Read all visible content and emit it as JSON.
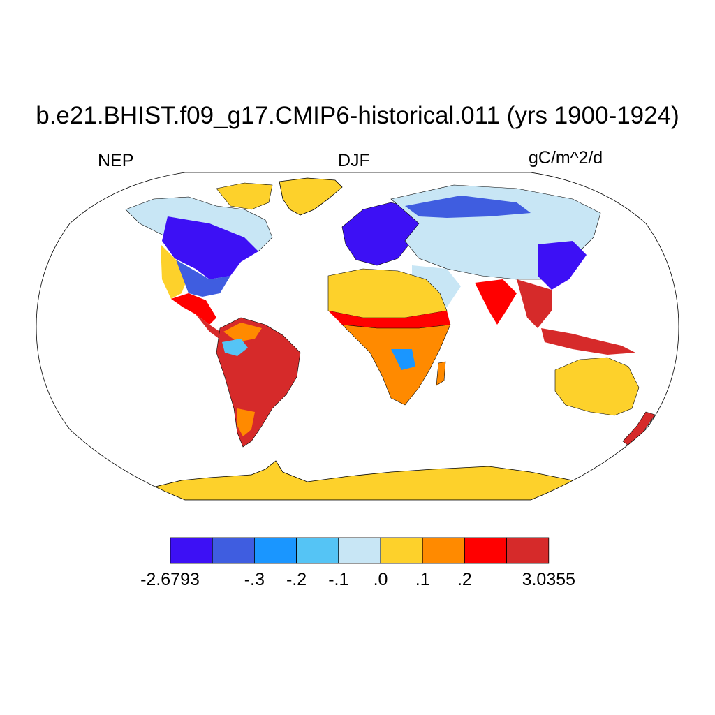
{
  "title": "b.e21.BHIST.f09_g17.CMIP6-historical.011 (yrs 1900-1924)",
  "left_label": "NEP",
  "center_label": "DJF",
  "right_label": "gC/m^2/d",
  "legend": {
    "colors": [
      "#3d10f5",
      "#3f5de0",
      "#1a96ff",
      "#55c4f5",
      "#c8e6f5",
      "#fdd12b",
      "#ff8a00",
      "#ff0000",
      "#d62a2a"
    ],
    "labels": [
      "-2.6793",
      "-.3",
      "-.2",
      "-.1",
      ".0",
      ".1",
      ".2",
      "3.0355"
    ]
  },
  "colors": {
    "antarctica": "#fdd12b",
    "greenland": "#fdd12b",
    "ocean": "#ffffff",
    "coast": "#000000"
  }
}
